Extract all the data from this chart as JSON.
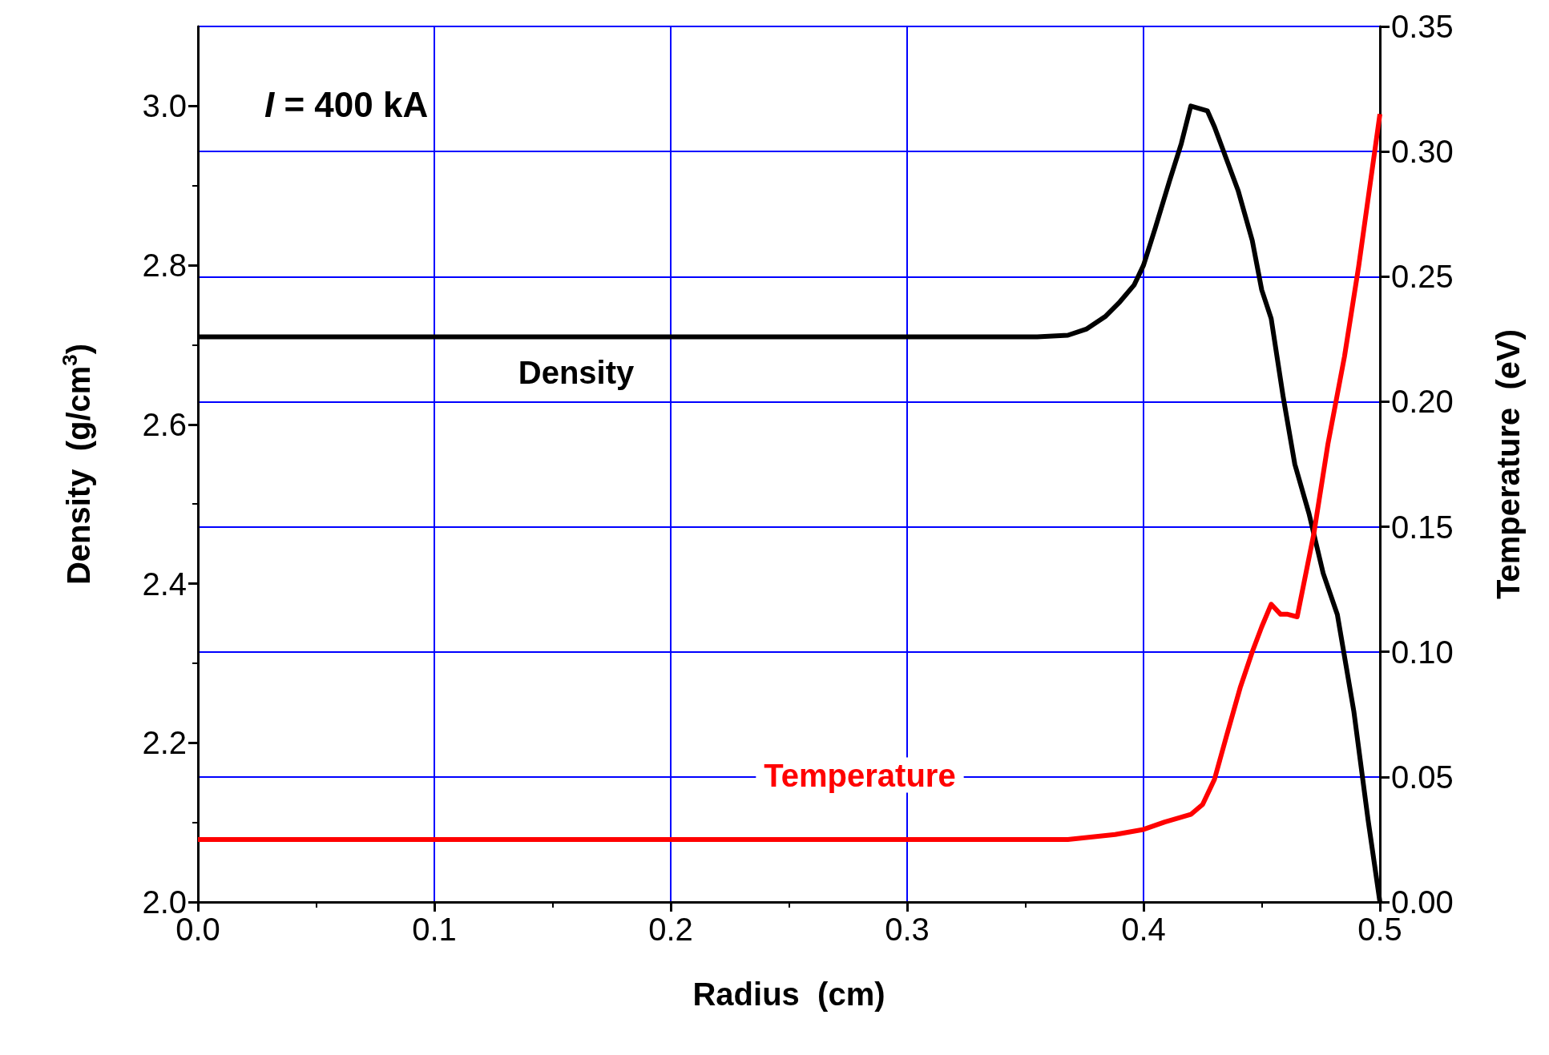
{
  "chart_data": {
    "type": "line",
    "xlabel": "Radius  (cm)",
    "ylabel": "Density  (g/cm$^{3}$)",
    "y2label": "Temperature  (eV)",
    "annotations": [
      "I = 400 kA"
    ],
    "xlim": [
      0,
      0.5
    ],
    "xticks": [
      {
        "value": 0,
        "label": "0.0"
      },
      0.1,
      0.2,
      0.3,
      0.4,
      0.5
    ],
    "ylim": [
      2.0,
      3.1
    ],
    "yticks": [
      {
        "value": 2,
        "label": "2.0"
      },
      2.2,
      2.4,
      2.6,
      2.8,
      {
        "value": 3,
        "label": "3.0"
      }
    ],
    "y2lim": [
      0,
      0.35
    ],
    "y2ticks": [
      {
        "value": 0,
        "label": "0.00"
      },
      0.05,
      {
        "value": 0.1,
        "label": "0.10"
      },
      0.15,
      {
        "value": 0.2,
        "label": "0.20"
      },
      0.25,
      {
        "value": 0.3,
        "label": "0.30"
      },
      0.35
    ],
    "grid": true,
    "marker": "none",
    "line_style": "solid",
    "series": [
      {
        "name": "Density",
        "color": "#000000",
        "x": [
          0,
          0.355,
          0.368,
          0.376,
          0.384,
          0.39,
          0.396,
          0.4,
          0.405,
          0.411,
          0.416,
          0.42,
          0.427,
          0.43,
          0.435,
          0.44,
          0.446,
          0.45,
          0.454,
          0.459,
          0.464,
          0.47,
          0.476,
          0.482,
          0.489,
          0.495,
          0.5
        ],
        "values": [
          2.71,
          2.71,
          2.712,
          2.72,
          2.736,
          2.754,
          2.775,
          2.8,
          2.847,
          2.906,
          2.953,
          3.0,
          2.994,
          2.974,
          2.934,
          2.894,
          2.831,
          2.769,
          2.733,
          2.636,
          2.55,
          2.488,
          2.413,
          2.361,
          2.239,
          2.103,
          2.0
        ]
      },
      {
        "name": "Temperature",
        "color": "#ff0000",
        "axis": "y2",
        "x": [
          0,
          0.368,
          0.388,
          0.4,
          0.409,
          0.42,
          0.425,
          0.43,
          0.435,
          0.441,
          0.446,
          0.45,
          0.454,
          0.458,
          0.461,
          0.465,
          0.472,
          0.478,
          0.485,
          0.491,
          0.5
        ],
        "values": [
          0.025,
          0.025,
          0.027,
          0.029,
          0.032,
          0.035,
          0.039,
          0.049,
          0.066,
          0.086,
          0.1,
          0.11,
          0.119,
          0.115,
          0.115,
          0.114,
          0.147,
          0.183,
          0.218,
          0.254,
          0.315
        ]
      }
    ]
  }
}
